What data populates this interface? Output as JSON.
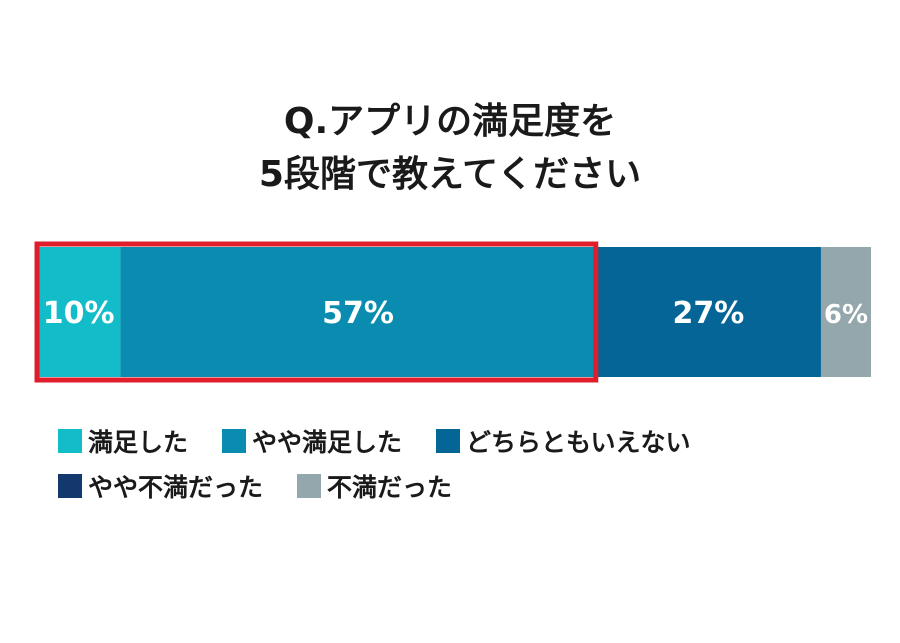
{
  "chart_data": {
    "type": "bar",
    "orientation": "horizontal-stacked-100",
    "title_lines": [
      "Q.アプリの満足度を",
      "5段階で教えてください"
    ],
    "categories": [
      "満足した",
      "やや満足した",
      "どちらともいえない",
      "やや不満だった",
      "不満だった"
    ],
    "values": [
      10,
      57,
      27,
      0,
      6
    ],
    "value_labels": [
      "10%",
      "57%",
      "27%",
      "",
      "6%"
    ],
    "colors": [
      "#12bdc9",
      "#0a8cb0",
      "#046596",
      "#13386e",
      "#93a7ad"
    ],
    "highlight": {
      "categories": [
        "満足した",
        "やや満足した"
      ],
      "color": "#e01e2b"
    },
    "legend": {
      "rows": [
        [
          "満足した",
          "やや満足した",
          "どちらともいえない"
        ],
        [
          "やや不満だった",
          "不満だった"
        ]
      ]
    }
  }
}
